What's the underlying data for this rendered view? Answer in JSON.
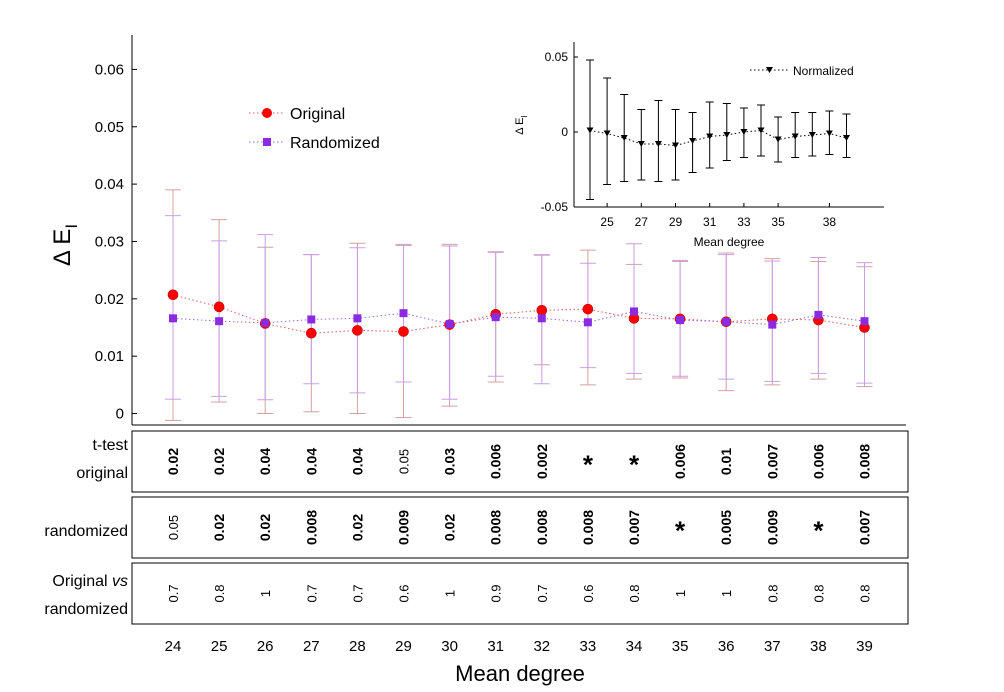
{
  "chart_data": [
    {
      "type": "scatter",
      "name": "main",
      "ylabel": "Δ E_I",
      "ylabel_main": "Δ E",
      "ylabel_sub": "I",
      "ylim": [
        -0.002,
        0.066
      ],
      "yticks": [
        0,
        0.01,
        0.02,
        0.03,
        0.04,
        0.05,
        0.06
      ],
      "ytick_labels": [
        "0",
        "0.01",
        "0.02",
        "0.03",
        "0.04",
        "0.05",
        "0.06"
      ],
      "x": [
        24,
        25,
        26,
        27,
        28,
        29,
        30,
        31,
        32,
        33,
        34,
        35,
        36,
        37,
        38,
        39
      ],
      "series": [
        {
          "name": "Original",
          "color": "#ff0000",
          "marker": "circle",
          "values": [
            0.0207,
            0.0186,
            0.0157,
            0.014,
            0.0145,
            0.0143,
            0.0155,
            0.0173,
            0.018,
            0.0182,
            0.0166,
            0.0165,
            0.016,
            0.0165,
            0.0163,
            0.015
          ],
          "err_low": [
            -0.0012,
            0.002,
            0.0,
            0.0003,
            0.0,
            -0.0007,
            0.0013,
            0.0055,
            0.0085,
            0.005,
            0.006,
            0.0062,
            0.004,
            0.005,
            0.006,
            0.0047
          ],
          "err_high": [
            0.039,
            0.0338,
            0.029,
            0.0277,
            0.0297,
            0.0295,
            0.0295,
            0.0282,
            0.0277,
            0.0285,
            0.026,
            0.0267,
            0.028,
            0.027,
            0.0265,
            0.0256
          ]
        },
        {
          "name": "Randomized",
          "color": "#8a2be2",
          "marker": "square",
          "values": [
            0.0166,
            0.0161,
            0.0158,
            0.0164,
            0.0166,
            0.0175,
            0.0156,
            0.0168,
            0.0166,
            0.0159,
            0.0178,
            0.0163,
            0.016,
            0.0155,
            0.0172,
            0.0161
          ],
          "err_low": [
            0.0025,
            0.003,
            0.0024,
            0.0052,
            0.0036,
            0.0055,
            0.0025,
            0.0065,
            0.0052,
            0.008,
            0.007,
            0.0065,
            0.006,
            0.0056,
            0.007,
            0.0053
          ],
          "err_high": [
            0.0345,
            0.0301,
            0.0312,
            0.0277,
            0.0289,
            0.0293,
            0.0292,
            0.0281,
            0.0276,
            0.0262,
            0.0296,
            0.0265,
            0.0277,
            0.0266,
            0.0272,
            0.0263
          ]
        }
      ],
      "legend": [
        "Original",
        "Randomized"
      ],
      "legend_position": "top-left"
    },
    {
      "type": "scatter",
      "name": "inset",
      "xlabel": "Mean degree",
      "ylabel": "Δ E_I",
      "ylabel_main": "Δ E",
      "ylabel_sub": "I",
      "ylim": [
        -0.05,
        0.06
      ],
      "yticks": [
        -0.05,
        0,
        0.05
      ],
      "ytick_labels": [
        "-0.05",
        "0",
        "0.05"
      ],
      "xticks": [
        25,
        27,
        29,
        31,
        33,
        35,
        38
      ],
      "x": [
        24,
        25,
        26,
        27,
        28,
        29,
        30,
        31,
        32,
        33,
        34,
        35,
        36,
        37,
        38,
        39
      ],
      "series": [
        {
          "name": "Normalized",
          "color": "#000000",
          "marker": "triangle-down",
          "values": [
            0.001,
            -0.001,
            -0.004,
            -0.008,
            -0.008,
            -0.009,
            -0.006,
            -0.003,
            -0.002,
            0.0,
            0.001,
            -0.005,
            -0.003,
            -0.002,
            -0.001,
            -0.004
          ],
          "err_low": [
            -0.045,
            -0.035,
            -0.033,
            -0.032,
            -0.033,
            -0.032,
            -0.027,
            -0.024,
            -0.019,
            -0.017,
            -0.016,
            -0.02,
            -0.017,
            -0.016,
            -0.015,
            -0.017
          ],
          "err_high": [
            0.048,
            0.036,
            0.025,
            0.015,
            0.021,
            0.015,
            0.013,
            0.02,
            0.019,
            0.016,
            0.018,
            0.01,
            0.013,
            0.013,
            0.014,
            0.012
          ]
        }
      ],
      "legend": [
        "Normalized"
      ],
      "legend_position": "top-right"
    },
    {
      "type": "table",
      "name": "significance",
      "xlabel": "Mean degree",
      "columns": [
        "24",
        "25",
        "26",
        "27",
        "28",
        "29",
        "30",
        "31",
        "32",
        "33",
        "34",
        "35",
        "36",
        "37",
        "38",
        "39"
      ],
      "rows": [
        {
          "label": [
            "t-test",
            "original"
          ],
          "values": [
            "0.02",
            "0.02",
            "0.04",
            "0.04",
            "0.04",
            "0.05",
            "0.03",
            "0.006",
            "0.002",
            "*",
            "*",
            "0.006",
            "0.01",
            "0.007",
            "0.006",
            "0.008"
          ],
          "bold": [
            true,
            true,
            true,
            true,
            true,
            false,
            true,
            true,
            true,
            true,
            true,
            true,
            true,
            true,
            true,
            true
          ]
        },
        {
          "label": [
            "randomized"
          ],
          "values": [
            "0.05",
            "0.02",
            "0.02",
            "0.008",
            "0.02",
            "0.009",
            "0.02",
            "0.008",
            "0.008",
            "0.008",
            "0.007",
            "*",
            "0.005",
            "0.009",
            "*",
            "0.007"
          ],
          "bold": [
            false,
            true,
            true,
            true,
            true,
            true,
            true,
            true,
            true,
            true,
            true,
            true,
            true,
            true,
            true,
            true
          ]
        },
        {
          "label_parts": [
            "Original ",
            "vs",
            "randomized"
          ],
          "values": [
            "0.7",
            "0.8",
            "1",
            "0.7",
            "0.7",
            "0.6",
            "1",
            "0.9",
            "0.7",
            "0.6",
            "0.8",
            "1",
            "1",
            "0.8",
            "0.8",
            "0.8"
          ],
          "bold": [
            false,
            false,
            false,
            false,
            false,
            false,
            false,
            false,
            false,
            false,
            false,
            false,
            false,
            false,
            false,
            false
          ]
        }
      ]
    }
  ]
}
